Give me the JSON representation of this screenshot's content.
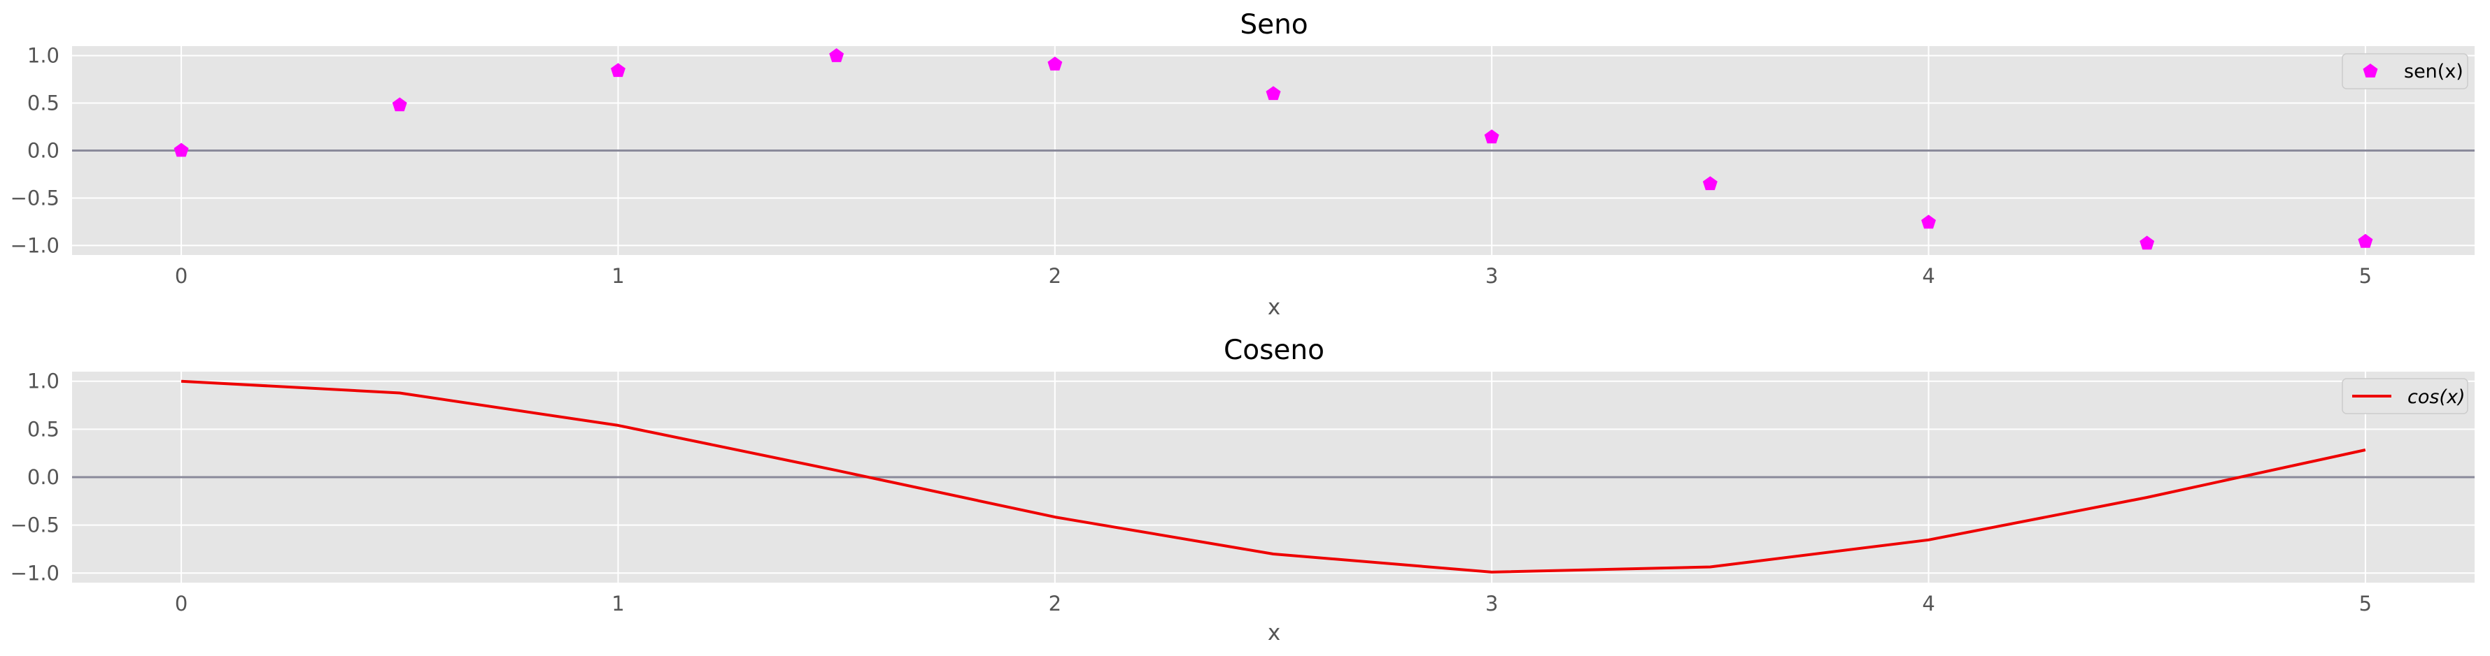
{
  "chart_data": [
    {
      "type": "scatter",
      "title": "Seno",
      "xlabel": "x",
      "ylabel": "",
      "xlim": [
        -0.25,
        5.25
      ],
      "ylim": [
        -1.1,
        1.1
      ],
      "xticks": [
        "0",
        "1",
        "2",
        "3",
        "4",
        "5"
      ],
      "yticks": [
        "−1.0",
        "−0.5",
        "0.0",
        "0.5",
        "1.0"
      ],
      "grid": true,
      "reference_line_y": 0,
      "legend": "top-right",
      "series": [
        {
          "name": "sen(x)",
          "color": "#ff00ff",
          "marker": "pentagon",
          "x": [
            0,
            0.5,
            1,
            1.5,
            2,
            2.5,
            3,
            3.5,
            4,
            4.5,
            5
          ],
          "values": [
            0.0,
            0.479,
            0.841,
            0.997,
            0.909,
            0.598,
            0.141,
            -0.351,
            -0.757,
            -0.978,
            -0.959
          ]
        }
      ]
    },
    {
      "type": "line",
      "title": "Coseno",
      "xlabel": "x",
      "ylabel": "",
      "xlim": [
        -0.25,
        5.25
      ],
      "ylim": [
        -1.1,
        1.1
      ],
      "xticks": [
        "0",
        "1",
        "2",
        "3",
        "4",
        "5"
      ],
      "yticks": [
        "−1.0",
        "−0.5",
        "0.0",
        "0.5",
        "1.0"
      ],
      "grid": true,
      "reference_line_y": 0,
      "legend": "top-right",
      "series": [
        {
          "name": "cos(x)",
          "color": "#ee0000",
          "x": [
            0,
            0.5,
            1,
            1.5,
            2,
            2.5,
            3,
            3.5,
            4,
            4.5,
            5
          ],
          "values": [
            1.0,
            0.878,
            0.54,
            0.071,
            -0.416,
            -0.801,
            -0.99,
            -0.936,
            -0.654,
            -0.211,
            0.284
          ]
        }
      ]
    }
  ],
  "colors": {
    "plot_background": "#e5e5e5",
    "grid": "#ffffff",
    "reference_line": "#8a8a9a"
  }
}
